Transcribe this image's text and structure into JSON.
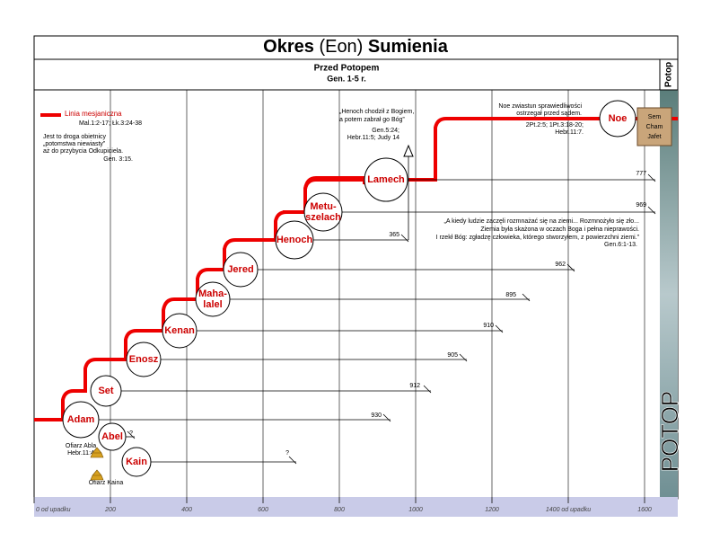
{
  "header": {
    "title": {
      "bold1": "Okres",
      "normal": "(Eon)",
      "bold2": "Sumienia"
    },
    "subtitle": "Przed Potopem",
    "reference": "Gen. 1-5 r.",
    "side_label": "Potop"
  },
  "legend": {
    "label": "Linia mesjaniczna",
    "reference": "Mal.1:2-17; Łk.3:24-38",
    "note": [
      "Jest to droga obietnicy",
      "„potomstwa niewiasty”",
      "aż do przybycia Odkupiciela."
    ],
    "note_ref": "Gen. 3:15."
  },
  "persons": [
    {
      "name": [
        "Adam"
      ],
      "age": "930"
    },
    {
      "name": [
        "Set"
      ],
      "age": "912"
    },
    {
      "name": [
        "Enosz"
      ],
      "age": "905"
    },
    {
      "name": [
        "Kenan"
      ],
      "age": "910"
    },
    {
      "name": [
        "Maha-",
        "lalel"
      ],
      "age": "895"
    },
    {
      "name": [
        "Jered"
      ],
      "age": "962"
    },
    {
      "name": [
        "Henoch"
      ],
      "age": "365"
    },
    {
      "name": [
        "Metu-",
        "szelach"
      ],
      "age": "969"
    },
    {
      "name": [
        "Lamech"
      ],
      "age": "777"
    },
    {
      "name": [
        "Noe"
      ],
      "age": null
    },
    {
      "name": [
        "Abel"
      ],
      "age": "?"
    },
    {
      "name": [
        "Kain"
      ],
      "age": "?"
    }
  ],
  "sons": [
    "Sem",
    "Cham",
    "Jafet"
  ],
  "notes": {
    "henoch": [
      "„Henoch chodził z Bogiem,",
      "a potem zabrał go Bóg”"
    ],
    "henoch_ref": [
      "Gen.5:24;",
      "Hebr.11:5; Judy 14"
    ],
    "noe": [
      "Noe zwiastun sprawiedliwości",
      "ostrzegał przed sądem."
    ],
    "noe_ref": [
      "2Pt.2:5; 1Pt.3:18-20;",
      "Hebr.11:7."
    ],
    "evil": [
      "„A kiedy ludzie zaczęli rozmnażać się na ziemi... Rozmnożyło się zło...",
      "Ziemia była skażona w oczach Boga i pełna nieprawości.",
      "I rzekł Bóg: zgładzę człowieka, którego stworzyłem, z powierzchni ziemi.”"
    ],
    "evil_ref": "Gen.6:1-13.",
    "abel": [
      "Ofiarz Abla",
      "Hebr.11:4"
    ],
    "kain": "Ofiarz Kaina"
  },
  "flood": "POTOP",
  "timeline": [
    "0 od upadku",
    "200",
    "400",
    "600",
    "800",
    "1000",
    "1200",
    "1400 od upadku",
    "1600"
  ]
}
